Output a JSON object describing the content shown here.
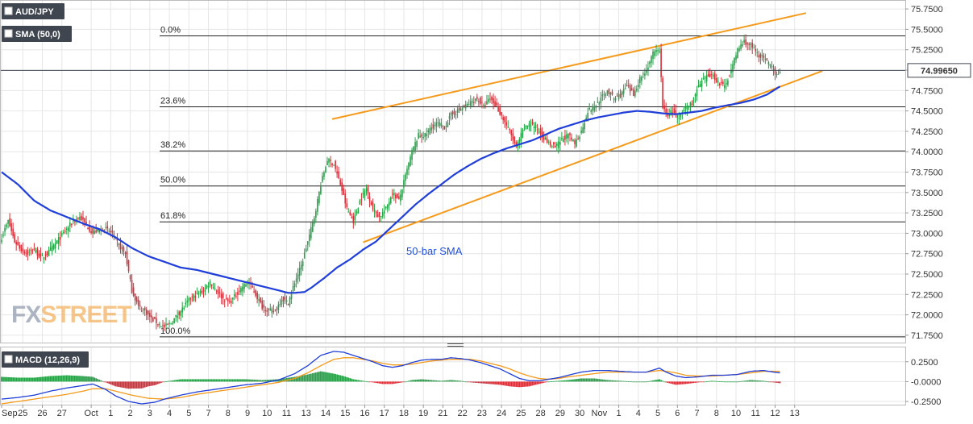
{
  "chart_data": [
    {
      "type": "candlestick",
      "symbol_label": "AUD/JPY",
      "indicator_label": "SMA (50,0)",
      "annotation": "50-bar SMA",
      "last_price": "74.99650",
      "ylim": [
        71.66,
        75.85
      ],
      "y_ticks": [
        "75.7500",
        "75.5000",
        "75.2500",
        "75.0000",
        "74.7500",
        "74.5000",
        "74.2500",
        "74.0000",
        "73.7500",
        "73.5000",
        "73.2500",
        "73.0000",
        "72.7500",
        "72.5000",
        "72.2500",
        "72.0000",
        "71.7500"
      ],
      "y_tick_values": [
        75.75,
        75.5,
        75.25,
        75.0,
        74.75,
        74.5,
        74.25,
        74.0,
        73.75,
        73.5,
        73.25,
        73.0,
        72.75,
        72.5,
        72.25,
        72.0,
        71.75
      ],
      "x_labels": [
        "Sep",
        "25",
        "26",
        "27",
        "Oct",
        "1",
        "2",
        "3",
        "4",
        "5",
        "7",
        "8",
        "9",
        "10",
        "11",
        "13",
        "14",
        "15",
        "16",
        "17",
        "18",
        "19",
        "21",
        "22",
        "23",
        "24",
        "25",
        "28",
        "29",
        "30",
        "Nov",
        "1",
        "4",
        "5",
        "6",
        "7",
        "8",
        "10",
        "11",
        "12",
        "13"
      ],
      "x_label_idx": [
        0,
        13,
        25,
        37,
        55,
        67,
        79,
        91,
        103,
        115,
        127,
        139,
        151,
        163,
        175,
        187,
        199,
        211,
        223,
        235,
        247,
        259,
        271,
        283,
        295,
        307,
        319,
        331,
        343,
        355,
        367,
        379,
        391,
        403,
        415,
        427,
        439,
        451,
        463,
        475,
        487
      ],
      "fibonacci": [
        {
          "label": "0.0%",
          "value": 75.42
        },
        {
          "label": "23.6%",
          "value": 74.55
        },
        {
          "label": "38.2%",
          "value": 74.01
        },
        {
          "label": "50.0%",
          "value": 73.58
        },
        {
          "label": "61.8%",
          "value": 73.14
        },
        {
          "label": "100.0%",
          "value": 71.73
        }
      ],
      "upper_trendline": {
        "from": [
          203,
          74.4
        ],
        "to": [
          494,
          75.7
        ]
      },
      "lower_trendline": {
        "from": [
          222,
          72.89
        ],
        "to": [
          504,
          74.99
        ]
      },
      "close_anchors": [
        [
          0,
          72.95
        ],
        [
          4,
          73.15
        ],
        [
          8,
          72.9
        ],
        [
          12,
          72.8
        ],
        [
          16,
          72.75
        ],
        [
          20,
          72.8
        ],
        [
          24,
          72.7
        ],
        [
          28,
          72.75
        ],
        [
          32,
          72.85
        ],
        [
          36,
          72.95
        ],
        [
          40,
          73.05
        ],
        [
          44,
          73.15
        ],
        [
          48,
          73.2
        ],
        [
          52,
          73.1
        ],
        [
          56,
          73.0
        ],
        [
          60,
          73.05
        ],
        [
          64,
          73.05
        ],
        [
          68,
          73.0
        ],
        [
          72,
          72.85
        ],
        [
          76,
          72.75
        ],
        [
          80,
          72.3
        ],
        [
          84,
          72.1
        ],
        [
          88,
          72.05
        ],
        [
          92,
          71.95
        ],
        [
          96,
          71.9
        ],
        [
          100,
          71.85
        ],
        [
          104,
          71.9
        ],
        [
          108,
          72.0
        ],
        [
          112,
          72.1
        ],
        [
          116,
          72.2
        ],
        [
          120,
          72.25
        ],
        [
          124,
          72.3
        ],
        [
          128,
          72.4
        ],
        [
          132,
          72.3
        ],
        [
          136,
          72.2
        ],
        [
          140,
          72.15
        ],
        [
          144,
          72.25
        ],
        [
          148,
          72.35
        ],
        [
          152,
          72.4
        ],
        [
          156,
          72.25
        ],
        [
          160,
          72.1
        ],
        [
          164,
          72.05
        ],
        [
          168,
          72.05
        ],
        [
          172,
          72.2
        ],
        [
          176,
          72.15
        ],
        [
          180,
          72.4
        ],
        [
          184,
          72.6
        ],
        [
          188,
          72.9
        ],
        [
          192,
          73.2
        ],
        [
          196,
          73.6
        ],
        [
          200,
          73.9
        ],
        [
          204,
          73.85
        ],
        [
          208,
          73.6
        ],
        [
          212,
          73.3
        ],
        [
          216,
          73.15
        ],
        [
          220,
          73.4
        ],
        [
          224,
          73.55
        ],
        [
          228,
          73.3
        ],
        [
          232,
          73.2
        ],
        [
          236,
          73.3
        ],
        [
          240,
          73.5
        ],
        [
          244,
          73.4
        ],
        [
          248,
          73.7
        ],
        [
          252,
          74.0
        ],
        [
          256,
          74.2
        ],
        [
          260,
          74.2
        ],
        [
          264,
          74.3
        ],
        [
          268,
          74.35
        ],
        [
          272,
          74.3
        ],
        [
          276,
          74.45
        ],
        [
          280,
          74.5
        ],
        [
          284,
          74.55
        ],
        [
          288,
          74.6
        ],
        [
          292,
          74.65
        ],
        [
          296,
          74.55
        ],
        [
          300,
          74.65
        ],
        [
          304,
          74.55
        ],
        [
          308,
          74.4
        ],
        [
          312,
          74.25
        ],
        [
          316,
          74.05
        ],
        [
          320,
          74.25
        ],
        [
          324,
          74.35
        ],
        [
          328,
          74.3
        ],
        [
          332,
          74.2
        ],
        [
          336,
          74.1
        ],
        [
          340,
          74.05
        ],
        [
          344,
          74.15
        ],
        [
          348,
          74.2
        ],
        [
          352,
          74.1
        ],
        [
          356,
          74.25
        ],
        [
          360,
          74.5
        ],
        [
          364,
          74.55
        ],
        [
          368,
          74.65
        ],
        [
          372,
          74.75
        ],
        [
          376,
          74.65
        ],
        [
          380,
          74.7
        ],
        [
          384,
          74.8
        ],
        [
          388,
          74.7
        ],
        [
          392,
          74.9
        ],
        [
          396,
          75.0
        ],
        [
          400,
          75.2
        ],
        [
          404,
          75.25
        ],
        [
          406,
          74.55
        ],
        [
          408,
          74.45
        ],
        [
          412,
          74.5
        ],
        [
          416,
          74.4
        ],
        [
          420,
          74.55
        ],
        [
          424,
          74.6
        ],
        [
          428,
          74.8
        ],
        [
          432,
          74.9
        ],
        [
          436,
          74.95
        ],
        [
          440,
          74.85
        ],
        [
          444,
          74.8
        ],
        [
          448,
          75.0
        ],
        [
          452,
          75.25
        ],
        [
          456,
          75.35
        ],
        [
          460,
          75.3
        ],
        [
          464,
          75.2
        ],
        [
          468,
          75.15
        ],
        [
          472,
          75.05
        ],
        [
          476,
          74.95
        ],
        [
          478,
          75.0
        ]
      ],
      "sma_anchors": [
        [
          0,
          73.75
        ],
        [
          10,
          73.6
        ],
        [
          20,
          73.4
        ],
        [
          30,
          73.28
        ],
        [
          40,
          73.2
        ],
        [
          50,
          73.12
        ],
        [
          60,
          73.05
        ],
        [
          70,
          72.95
        ],
        [
          80,
          72.82
        ],
        [
          90,
          72.72
        ],
        [
          100,
          72.65
        ],
        [
          110,
          72.58
        ],
        [
          120,
          72.55
        ],
        [
          130,
          72.5
        ],
        [
          140,
          72.45
        ],
        [
          150,
          72.4
        ],
        [
          160,
          72.35
        ],
        [
          170,
          72.3
        ],
        [
          176,
          72.27
        ],
        [
          180,
          72.27
        ],
        [
          186,
          72.28
        ],
        [
          190,
          72.33
        ],
        [
          198,
          72.45
        ],
        [
          206,
          72.58
        ],
        [
          214,
          72.68
        ],
        [
          222,
          72.8
        ],
        [
          230,
          72.9
        ],
        [
          238,
          73.05
        ],
        [
          246,
          73.2
        ],
        [
          254,
          73.35
        ],
        [
          262,
          73.48
        ],
        [
          270,
          73.6
        ],
        [
          278,
          73.72
        ],
        [
          286,
          73.82
        ],
        [
          294,
          73.91
        ],
        [
          302,
          73.98
        ],
        [
          310,
          74.04
        ],
        [
          318,
          74.09
        ],
        [
          326,
          74.14
        ],
        [
          334,
          74.21
        ],
        [
          342,
          74.28
        ],
        [
          350,
          74.33
        ],
        [
          358,
          74.38
        ],
        [
          366,
          74.42
        ],
        [
          374,
          74.45
        ],
        [
          382,
          74.48
        ],
        [
          390,
          74.5
        ],
        [
          398,
          74.49
        ],
        [
          406,
          74.47
        ],
        [
          414,
          74.46
        ],
        [
          422,
          74.48
        ],
        [
          430,
          74.5
        ],
        [
          438,
          74.54
        ],
        [
          446,
          74.57
        ],
        [
          454,
          74.6
        ],
        [
          462,
          74.64
        ],
        [
          470,
          74.7
        ],
        [
          478,
          74.8
        ]
      ]
    },
    {
      "type": "macd",
      "label": "MACD (12,26,9)",
      "ylim": [
        -0.29,
        0.43
      ],
      "y_ticks": [
        "0.2500",
        "-0.0000",
        "-0.2500"
      ],
      "y_tick_values": [
        0.25,
        0.0,
        -0.25
      ],
      "macd_anchors": [
        [
          0,
          -0.22
        ],
        [
          10,
          -0.2
        ],
        [
          20,
          -0.17
        ],
        [
          30,
          -0.12
        ],
        [
          40,
          -0.08
        ],
        [
          50,
          -0.05
        ],
        [
          56,
          -0.03
        ],
        [
          64,
          -0.1
        ],
        [
          70,
          -0.18
        ],
        [
          78,
          -0.25
        ],
        [
          86,
          -0.28
        ],
        [
          94,
          -0.26
        ],
        [
          100,
          -0.22
        ],
        [
          110,
          -0.17
        ],
        [
          120,
          -0.13
        ],
        [
          130,
          -0.1
        ],
        [
          140,
          -0.07
        ],
        [
          150,
          -0.04
        ],
        [
          160,
          -0.02
        ],
        [
          170,
          0.02
        ],
        [
          180,
          0.1
        ],
        [
          188,
          0.2
        ],
        [
          196,
          0.33
        ],
        [
          204,
          0.38
        ],
        [
          210,
          0.37
        ],
        [
          216,
          0.33
        ],
        [
          222,
          0.29
        ],
        [
          228,
          0.25
        ],
        [
          234,
          0.2
        ],
        [
          240,
          0.18
        ],
        [
          246,
          0.2
        ],
        [
          252,
          0.24
        ],
        [
          258,
          0.27
        ],
        [
          264,
          0.28
        ],
        [
          270,
          0.28
        ],
        [
          276,
          0.3
        ],
        [
          282,
          0.29
        ],
        [
          288,
          0.27
        ],
        [
          294,
          0.24
        ],
        [
          300,
          0.2
        ],
        [
          306,
          0.16
        ],
        [
          312,
          0.1
        ],
        [
          318,
          0.04
        ],
        [
          324,
          0.01
        ],
        [
          330,
          0.01
        ],
        [
          336,
          0.03
        ],
        [
          342,
          0.05
        ],
        [
          348,
          0.08
        ],
        [
          356,
          0.12
        ],
        [
          364,
          0.14
        ],
        [
          372,
          0.14
        ],
        [
          380,
          0.13
        ],
        [
          388,
          0.12
        ],
        [
          396,
          0.12
        ],
        [
          404,
          0.17
        ],
        [
          408,
          0.12
        ],
        [
          414,
          0.07
        ],
        [
          420,
          0.05
        ],
        [
          428,
          0.06
        ],
        [
          436,
          0.08
        ],
        [
          444,
          0.08
        ],
        [
          452,
          0.09
        ],
        [
          460,
          0.13
        ],
        [
          468,
          0.14
        ],
        [
          474,
          0.12
        ],
        [
          478,
          0.11
        ]
      ],
      "signal_anchors": [
        [
          0,
          -0.28
        ],
        [
          10,
          -0.25
        ],
        [
          20,
          -0.22
        ],
        [
          30,
          -0.19
        ],
        [
          40,
          -0.16
        ],
        [
          50,
          -0.12
        ],
        [
          56,
          -0.09
        ],
        [
          64,
          -0.09
        ],
        [
          70,
          -0.12
        ],
        [
          80,
          -0.17
        ],
        [
          90,
          -0.21
        ],
        [
          100,
          -0.22
        ],
        [
          110,
          -0.2
        ],
        [
          120,
          -0.16
        ],
        [
          130,
          -0.13
        ],
        [
          140,
          -0.1
        ],
        [
          150,
          -0.07
        ],
        [
          160,
          -0.04
        ],
        [
          170,
          -0.01
        ],
        [
          180,
          0.04
        ],
        [
          188,
          0.11
        ],
        [
          196,
          0.2
        ],
        [
          204,
          0.28
        ],
        [
          210,
          0.3
        ],
        [
          216,
          0.3
        ],
        [
          222,
          0.28
        ],
        [
          228,
          0.26
        ],
        [
          234,
          0.23
        ],
        [
          240,
          0.21
        ],
        [
          246,
          0.21
        ],
        [
          252,
          0.22
        ],
        [
          258,
          0.24
        ],
        [
          264,
          0.26
        ],
        [
          270,
          0.27
        ],
        [
          276,
          0.28
        ],
        [
          282,
          0.28
        ],
        [
          288,
          0.28
        ],
        [
          294,
          0.26
        ],
        [
          300,
          0.23
        ],
        [
          306,
          0.2
        ],
        [
          312,
          0.16
        ],
        [
          318,
          0.11
        ],
        [
          324,
          0.07
        ],
        [
          330,
          0.04
        ],
        [
          336,
          0.03
        ],
        [
          342,
          0.04
        ],
        [
          348,
          0.06
        ],
        [
          356,
          0.08
        ],
        [
          364,
          0.1
        ],
        [
          372,
          0.12
        ],
        [
          380,
          0.12
        ],
        [
          388,
          0.12
        ],
        [
          396,
          0.12
        ],
        [
          404,
          0.14
        ],
        [
          408,
          0.13
        ],
        [
          414,
          0.11
        ],
        [
          420,
          0.08
        ],
        [
          428,
          0.07
        ],
        [
          436,
          0.07
        ],
        [
          444,
          0.08
        ],
        [
          452,
          0.09
        ],
        [
          460,
          0.11
        ],
        [
          468,
          0.13
        ],
        [
          474,
          0.13
        ],
        [
          478,
          0.13
        ]
      ]
    }
  ],
  "watermark": "FXSTREET",
  "colors": {
    "bull": "#27a048",
    "bear": "#d3303a",
    "sma": "#1f3fd8",
    "trendline": "#f59a1a",
    "macd": "#1f3fd8",
    "signal": "#f59a1a",
    "fib": "#222222",
    "grid": "#e6e6e6",
    "label_bg": "#3f4650",
    "price_line": "#3f4650",
    "logo_fx": "#9aa3b4",
    "logo_street": "#f4b76e"
  }
}
